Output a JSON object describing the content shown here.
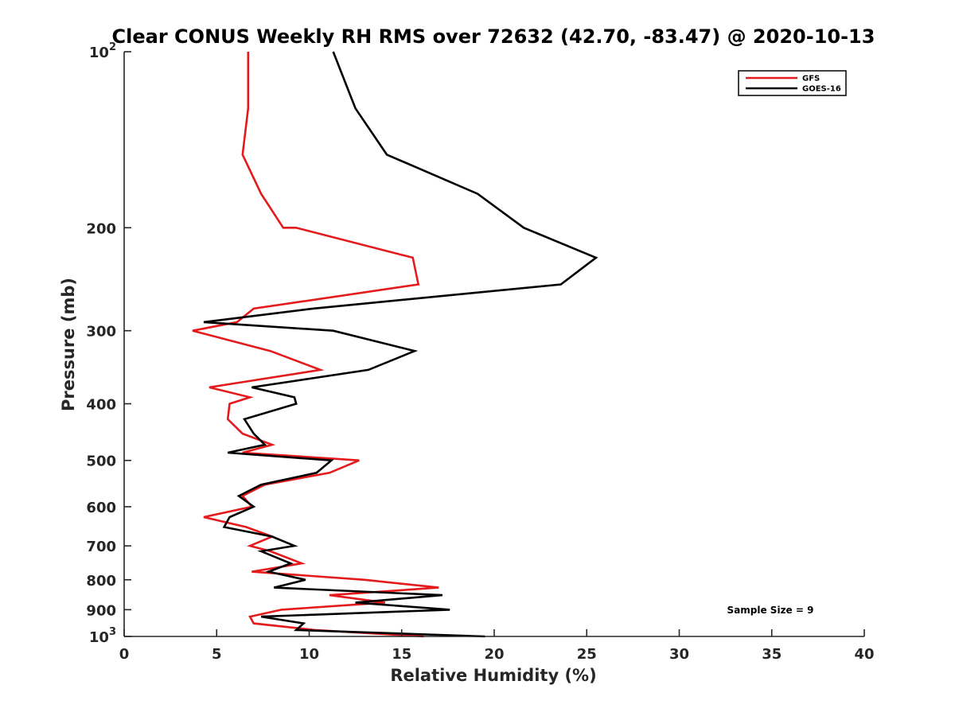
{
  "chart_data": {
    "type": "line",
    "title": "Clear CONUS Weekly RH RMS over 72632 (42.70, -83.47) @ 2020-10-13",
    "xlabel": "Relative Humidity (%)",
    "ylabel": "Pressure (mb)",
    "xlim": [
      0,
      40
    ],
    "ylim": [
      100,
      1000
    ],
    "y_scale": "log",
    "y_reversed": true,
    "grid": false,
    "legend_position": "top-right",
    "x_ticks": [
      "0",
      "5",
      "10",
      "15",
      "20",
      "25",
      "30",
      "35",
      "40"
    ],
    "y_ticks": [
      {
        "value": 100,
        "base": "10",
        "exp": "2"
      },
      {
        "value": 200,
        "label": "200"
      },
      {
        "value": 300,
        "label": "300"
      },
      {
        "value": 400,
        "label": "400"
      },
      {
        "value": 500,
        "label": "500"
      },
      {
        "value": 600,
        "label": "600"
      },
      {
        "value": 700,
        "label": "700"
      },
      {
        "value": 800,
        "label": "800"
      },
      {
        "value": 900,
        "label": "900"
      },
      {
        "value": 1000,
        "base": "10",
        "exp": "3"
      }
    ],
    "annotation": "Sample Size = 9",
    "series": [
      {
        "name": "GFS",
        "color": "#e41a1c",
        "points": [
          [
            6.7,
            100
          ],
          [
            6.7,
            125
          ],
          [
            6.4,
            150
          ],
          [
            7.4,
            175
          ],
          [
            8.6,
            200
          ],
          [
            9.3,
            200
          ],
          [
            15.6,
            225
          ],
          [
            15.9,
            250
          ],
          [
            7.0,
            275
          ],
          [
            6.1,
            290
          ],
          [
            3.7,
            300
          ],
          [
            7.9,
            325
          ],
          [
            10.6,
            350
          ],
          [
            4.6,
            375
          ],
          [
            6.8,
            390
          ],
          [
            5.7,
            400
          ],
          [
            5.6,
            425
          ],
          [
            6.4,
            450
          ],
          [
            8.0,
            470
          ],
          [
            6.4,
            485
          ],
          [
            12.7,
            500
          ],
          [
            11.1,
            525
          ],
          [
            7.6,
            550
          ],
          [
            6.4,
            575
          ],
          [
            6.9,
            600
          ],
          [
            4.3,
            625
          ],
          [
            6.6,
            650
          ],
          [
            8.0,
            675
          ],
          [
            6.8,
            700
          ],
          [
            7.9,
            715
          ],
          [
            9.6,
            750
          ],
          [
            6.9,
            775
          ],
          [
            13.0,
            800
          ],
          [
            17.0,
            825
          ],
          [
            11.1,
            850
          ],
          [
            14.1,
            875
          ],
          [
            8.5,
            900
          ],
          [
            6.8,
            925
          ],
          [
            7.0,
            950
          ],
          [
            10.3,
            975
          ],
          [
            16.2,
            1000
          ]
        ]
      },
      {
        "name": "GOES-16",
        "color": "#000000",
        "points": [
          [
            11.3,
            100
          ],
          [
            12.5,
            125
          ],
          [
            14.2,
            150
          ],
          [
            19.1,
            175
          ],
          [
            21.6,
            200
          ],
          [
            25.5,
            225
          ],
          [
            23.6,
            250
          ],
          [
            10.2,
            275
          ],
          [
            4.3,
            290
          ],
          [
            11.3,
            300
          ],
          [
            15.7,
            325
          ],
          [
            13.2,
            350
          ],
          [
            6.9,
            375
          ],
          [
            9.2,
            390
          ],
          [
            9.3,
            400
          ],
          [
            6.5,
            425
          ],
          [
            7.0,
            450
          ],
          [
            7.6,
            470
          ],
          [
            5.6,
            485
          ],
          [
            11.2,
            500
          ],
          [
            10.4,
            525
          ],
          [
            7.4,
            550
          ],
          [
            6.2,
            575
          ],
          [
            7.0,
            600
          ],
          [
            5.7,
            625
          ],
          [
            5.4,
            650
          ],
          [
            8.0,
            675
          ],
          [
            9.2,
            700
          ],
          [
            7.4,
            715
          ],
          [
            9.0,
            750
          ],
          [
            7.8,
            775
          ],
          [
            9.8,
            800
          ],
          [
            8.1,
            825
          ],
          [
            17.2,
            850
          ],
          [
            12.5,
            875
          ],
          [
            17.6,
            900
          ],
          [
            7.4,
            925
          ],
          [
            9.7,
            950
          ],
          [
            9.3,
            975
          ],
          [
            19.5,
            1000
          ]
        ]
      }
    ]
  }
}
